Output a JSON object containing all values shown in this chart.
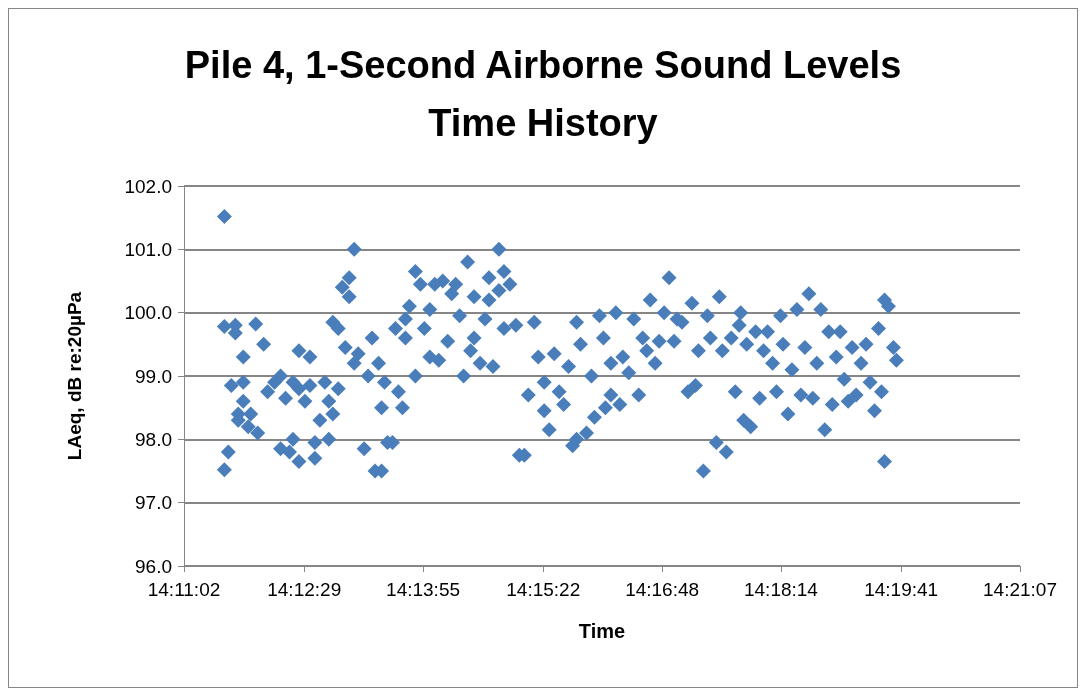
{
  "chart_data": {
    "type": "scatter",
    "title": "Pile 4, 1-Second Airborne Sound Levels\nTime History",
    "xlabel": "Time",
    "ylabel": "LAeq, dB re:20µPa",
    "xlim": [
      14.183889,
      14.351944
    ],
    "xticks": [
      {
        "value": 14.183889,
        "label": "14:11:02"
      },
      {
        "value": 14.208056,
        "label": "14:12:29"
      },
      {
        "value": 14.231944,
        "label": "14:13:55"
      },
      {
        "value": 14.256111,
        "label": "14:15:22"
      },
      {
        "value": 14.28,
        "label": "14:16:48"
      },
      {
        "value": 14.303889,
        "label": "14:18:14"
      },
      {
        "value": 14.328056,
        "label": "14:19:41"
      },
      {
        "value": 14.351944,
        "label": "14:21:07"
      }
    ],
    "ylim": [
      96,
      102
    ],
    "yticks": [
      {
        "value": 96,
        "label": "96.0"
      },
      {
        "value": 97,
        "label": "97.0"
      },
      {
        "value": 98,
        "label": "98.0"
      },
      {
        "value": 99,
        "label": "99.0"
      },
      {
        "value": 100,
        "label": "100.0"
      },
      {
        "value": 101,
        "label": "101.0"
      },
      {
        "value": 102,
        "label": "102.0"
      }
    ],
    "grid": "y",
    "marker": "diamond",
    "series": [
      {
        "color": "#4a7ebb",
        "x": [
          14.192,
          14.192,
          14.192,
          14.1928,
          14.1934,
          14.1942,
          14.1942,
          14.1948,
          14.1948,
          14.1958,
          14.1958,
          14.1958,
          14.1968,
          14.1973,
          14.1983,
          14.1987,
          14.1999,
          14.2007,
          14.2021,
          14.2033,
          14.2033,
          14.2043,
          14.2051,
          14.2058,
          14.2058,
          14.207,
          14.207,
          14.207,
          14.2082,
          14.2092,
          14.2092,
          14.2102,
          14.2102,
          14.2112,
          14.2122,
          14.213,
          14.213,
          14.2138,
          14.2138,
          14.2149,
          14.2149,
          14.2157,
          14.2163,
          14.2171,
          14.2171,
          14.2181,
          14.2181,
          14.2189,
          14.2201,
          14.2209,
          14.2217,
          14.2223,
          14.223,
          14.2236,
          14.2236,
          14.2242,
          14.2248,
          14.2258,
          14.2264,
          14.227,
          14.2278,
          14.2284,
          14.2284,
          14.2292,
          14.2304,
          14.2304,
          14.2314,
          14.2322,
          14.2333,
          14.2333,
          14.2343,
          14.2351,
          14.2359,
          14.2369,
          14.2377,
          14.2385,
          14.2393,
          14.2401,
          14.2409,
          14.2415,
          14.2422,
          14.2422,
          14.2434,
          14.2444,
          14.2452,
          14.2452,
          14.246,
          14.2472,
          14.2472,
          14.2482,
          14.2482,
          14.2494,
          14.2506,
          14.2513,
          14.2523,
          14.2531,
          14.2543,
          14.2551,
          14.2563,
          14.2563,
          14.2573,
          14.2583,
          14.2593,
          14.2602,
          14.2612,
          14.262,
          14.2628,
          14.2628,
          14.2636,
          14.2648,
          14.2658,
          14.2664,
          14.2674,
          14.2682,
          14.2686,
          14.2697,
          14.2697,
          14.2707,
          14.2715,
          14.2721,
          14.2733,
          14.2743,
          14.2753,
          14.2761,
          14.2769,
          14.2776,
          14.2786,
          14.2794,
          14.2804,
          14.2814,
          14.2824,
          14.283,
          14.284,
          14.2852,
          14.286,
          14.2867,
          14.2873,
          14.2883,
          14.2891,
          14.2897,
          14.2909,
          14.2915,
          14.2921,
          14.2929,
          14.2939,
          14.2947,
          14.2955,
          14.2958,
          14.2964,
          14.297,
          14.2978,
          14.2988,
          14.2996,
          14.3004,
          14.3012,
          14.3022,
          14.303,
          14.3038,
          14.3043,
          14.3053,
          14.3061,
          14.3071,
          14.3079,
          14.3087,
          14.3095,
          14.3103,
          14.3111,
          14.3119,
          14.3127,
          14.3135,
          14.3142,
          14.315,
          14.3158,
          14.3166,
          14.3174,
          14.3182,
          14.319,
          14.32,
          14.321,
          14.3218,
          14.3227,
          14.3235,
          14.3241,
          14.3247,
          14.3247,
          14.3255,
          14.3265,
          14.3271
        ],
        "values": [
          101.52,
          99.78,
          97.52,
          97.8,
          98.85,
          99.8,
          99.68,
          98.4,
          98.3,
          99.3,
          98.6,
          98.9,
          98.2,
          98.4,
          99.82,
          98.1,
          99.5,
          98.75,
          98.9,
          99.0,
          97.85,
          98.65,
          97.8,
          98.9,
          98.0,
          99.4,
          98.8,
          97.65,
          98.6,
          99.3,
          98.85,
          97.95,
          97.7,
          98.3,
          98.9,
          98.0,
          98.6,
          99.85,
          98.4,
          99.75,
          98.8,
          100.4,
          99.45,
          100.55,
          100.25,
          101.0,
          99.2,
          99.35,
          97.85,
          99.0,
          99.6,
          97.5,
          99.2,
          97.5,
          98.5,
          98.9,
          97.95,
          97.95,
          99.75,
          98.75,
          98.5,
          99.6,
          99.9,
          100.1,
          100.65,
          99.0,
          100.45,
          99.75,
          100.05,
          99.3,
          100.45,
          99.25,
          100.5,
          99.55,
          100.3,
          100.45,
          99.95,
          99.0,
          100.8,
          99.4,
          100.25,
          99.6,
          99.2,
          99.9,
          100.55,
          100.2,
          99.15,
          101.0,
          100.35,
          100.65,
          99.75,
          100.45,
          99.8,
          97.75,
          97.75,
          98.7,
          99.85,
          99.3,
          98.45,
          98.9,
          98.15,
          99.35,
          98.75,
          98.55,
          99.15,
          97.9,
          99.85,
          98.0,
          99.5,
          98.1,
          99.0,
          98.35,
          99.95,
          99.6,
          98.5,
          98.7,
          99.2,
          100.0,
          98.55,
          99.3,
          99.05,
          99.9,
          98.7,
          99.6,
          99.4,
          100.2,
          99.2,
          99.55,
          100.0,
          100.55,
          99.55,
          99.9,
          99.85,
          98.75,
          100.15,
          98.85,
          99.4,
          97.5,
          99.95,
          99.6,
          97.95,
          100.25,
          99.4,
          97.8,
          99.6,
          98.75,
          99.8,
          100.0,
          98.3,
          99.5,
          98.2,
          99.7,
          98.65,
          99.4,
          99.7,
          99.2,
          98.75,
          99.95,
          99.5,
          98.4,
          99.1,
          100.05,
          98.7,
          99.45,
          100.3,
          98.65,
          99.2,
          100.05,
          98.15,
          99.7,
          98.55,
          99.3,
          99.7,
          98.95,
          98.6,
          99.45,
          98.7,
          99.2,
          99.5,
          98.9,
          98.45,
          99.75,
          98.75,
          97.65,
          100.2,
          100.1,
          99.45,
          99.25
        ]
      }
    ]
  }
}
